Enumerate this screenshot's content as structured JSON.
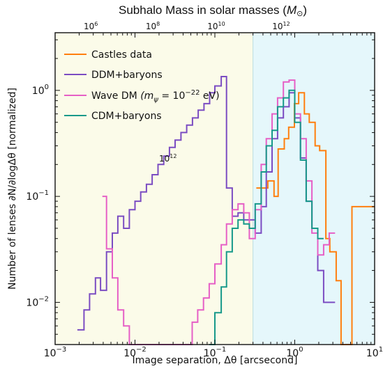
{
  "chart_data": {
    "type": "line",
    "title": "Subhalo Mass in solar masses ($M_{\\odot}$)",
    "title_parts": {
      "main": "Subhalo Mass in solar masses (",
      "symbol": "M",
      "sub": "⊙",
      "close": ")"
    },
    "xlabel": "Image separation, Δθ [arcsecond]",
    "ylabel": "Number of lenses ∂N/∂logΔθ [normalized]",
    "x_scale": "log",
    "y_scale": "log",
    "xlim": [
      0.001,
      10
    ],
    "ylim": [
      0.004,
      3.5
    ],
    "x_ticks": [
      {
        "value": 0.001,
        "base": "10",
        "exp": "−3"
      },
      {
        "value": 0.01,
        "base": "10",
        "exp": "−2"
      },
      {
        "value": 0.1,
        "base": "10",
        "exp": "−1"
      },
      {
        "value": 1,
        "base": "10",
        "exp": "0"
      },
      {
        "value": 10,
        "base": "10",
        "exp": "1"
      }
    ],
    "y_ticks": [
      {
        "value": 0.01,
        "base": "10",
        "exp": "−2"
      },
      {
        "value": 0.1,
        "base": "10",
        "exp": "−1"
      },
      {
        "value": 1,
        "base": "10",
        "exp": "0"
      }
    ],
    "top_axis": {
      "label": "Subhalo Mass in solar masses",
      "ticks": [
        {
          "x": 0.0028,
          "base": "10",
          "exp": "6"
        },
        {
          "x": 0.0167,
          "base": "10",
          "exp": "8"
        },
        {
          "x": 0.104,
          "base": "10",
          "exp": "10"
        },
        {
          "x": 0.675,
          "base": "10",
          "exp": "12"
        }
      ]
    },
    "shaded_regions": [
      {
        "name": "left-region",
        "x_from": 0.001,
        "x_to": 0.3,
        "color": "#fbfbe9"
      },
      {
        "name": "right-region",
        "x_from": 0.3,
        "x_to": 10,
        "color": "#e5f7fb"
      }
    ],
    "annotation": {
      "base": "10",
      "exp": "12",
      "x": 0.0095,
      "y": 0.55
    },
    "legend": {
      "position": "top-left",
      "entries": [
        {
          "label": "Castles data",
          "color": "#ff7f0e"
        },
        {
          "label": "DDM+baryons",
          "color": "#7b4cc2"
        },
        {
          "label": "Wave DM",
          "math_prefix": "(m",
          "math_sub": "ψ",
          "math_mid": " = 10",
          "math_exp": "−22",
          "math_suffix": " eV)",
          "color": "#e65fc6"
        },
        {
          "label": "CDM+baryons",
          "color": "#17998a"
        }
      ]
    },
    "series": [
      {
        "name": "Castles data",
        "color": "#ff7f0e",
        "x": [
          0.33,
          0.4,
          0.46,
          0.55,
          0.62,
          0.74,
          0.84,
          0.99,
          1.12,
          1.32,
          1.52,
          1.8,
          2.05,
          2.45,
          2.75,
          3.3,
          3.8,
          4.5,
          5.2,
          6.2,
          10.0
        ],
        "y": [
          0.12,
          0.12,
          0.14,
          0.1,
          0.28,
          0.35,
          0.45,
          0.75,
          0.95,
          0.6,
          0.5,
          0.3,
          0.27,
          0.04,
          0.03,
          0.016,
          0.004,
          0.004,
          0.08,
          0.08,
          0.08
        ]
      },
      {
        "name": "DDM+baryons",
        "color": "#7b4cc2",
        "x": [
          0.0019,
          0.0023,
          0.0027,
          0.0032,
          0.0037,
          0.0044,
          0.0052,
          0.0061,
          0.0072,
          0.0085,
          0.01,
          0.0118,
          0.0139,
          0.0164,
          0.0194,
          0.0229,
          0.027,
          0.0318,
          0.0376,
          0.0444,
          0.0524,
          0.0618,
          0.073,
          0.086,
          0.1,
          0.12,
          0.14,
          0.165,
          0.195,
          0.23,
          0.27,
          0.32,
          0.38,
          0.44,
          0.52,
          0.61,
          0.72,
          0.85,
          1.0,
          1.18,
          1.39,
          1.64,
          1.94,
          2.3,
          2.7,
          3.2
        ],
        "y": [
          0.0055,
          0.0085,
          0.012,
          0.017,
          0.013,
          0.03,
          0.045,
          0.065,
          0.05,
          0.075,
          0.09,
          0.11,
          0.13,
          0.16,
          0.2,
          0.24,
          0.29,
          0.34,
          0.4,
          0.47,
          0.55,
          0.65,
          0.75,
          0.95,
          1.1,
          1.35,
          0.12,
          0.065,
          0.07,
          0.06,
          0.06,
          0.045,
          0.08,
          0.17,
          0.35,
          0.55,
          0.7,
          0.95,
          0.55,
          0.23,
          0.09,
          0.05,
          0.02,
          0.01,
          0.01,
          0.008
        ]
      },
      {
        "name": "Wave DM",
        "color": "#e65fc6",
        "x": [
          0.0039,
          0.0044,
          0.0052,
          0.0061,
          0.0072,
          0.0085,
          0.044,
          0.052,
          0.061,
          0.072,
          0.085,
          0.1,
          0.12,
          0.14,
          0.165,
          0.195,
          0.23,
          0.27,
          0.32,
          0.38,
          0.44,
          0.52,
          0.61,
          0.72,
          0.85,
          1.0,
          1.18,
          1.39,
          1.64,
          1.94,
          2.3,
          2.7,
          3.2
        ],
        "y": [
          0.1,
          0.032,
          0.017,
          0.0085,
          0.006,
          0.004,
          0.004,
          0.0065,
          0.0085,
          0.011,
          0.015,
          0.023,
          0.035,
          0.055,
          0.075,
          0.085,
          0.07,
          0.04,
          0.075,
          0.2,
          0.35,
          0.6,
          0.85,
          1.2,
          1.25,
          0.6,
          0.35,
          0.14,
          0.045,
          0.028,
          0.035,
          0.045,
          0.04
        ]
      },
      {
        "name": "CDM+baryons",
        "color": "#17998a",
        "x": [
          0.085,
          0.1,
          0.12,
          0.14,
          0.165,
          0.195,
          0.23,
          0.27,
          0.32,
          0.38,
          0.44,
          0.52,
          0.61,
          0.72,
          0.85,
          1.0,
          1.18,
          1.39,
          1.64,
          1.94,
          2.3
        ],
        "y": [
          0.004,
          0.008,
          0.014,
          0.03,
          0.05,
          0.06,
          0.055,
          0.05,
          0.085,
          0.17,
          0.3,
          0.42,
          0.7,
          0.85,
          1.0,
          0.5,
          0.22,
          0.09,
          0.05,
          0.04,
          0.03
        ]
      }
    ]
  }
}
